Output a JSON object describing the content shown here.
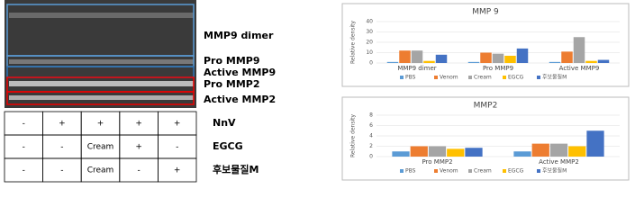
{
  "gel": {
    "band_labels": [
      "MMP9 dimer",
      "Pro MMP9",
      "Active MMP9",
      "Pro MMP2",
      "Active MMP2"
    ],
    "table": {
      "rows": [
        [
          "-",
          "+",
          "+",
          "+",
          "+",
          "NnV"
        ],
        [
          "-",
          "-",
          "Cream",
          "+",
          "-",
          "EGCG"
        ],
        [
          "-",
          "-",
          "Cream",
          "-",
          "+",
          "후보물질M"
        ]
      ]
    }
  },
  "chart_data": [
    {
      "type": "bar",
      "title": "MMP 9",
      "y_label": "Relative density",
      "categories": [
        "MMP9 dimer",
        "Pro MMP9",
        "Active MMP9"
      ],
      "series": [
        {
          "name": "PBS",
          "color": "#5b9bd5",
          "values": [
            1,
            1,
            1
          ]
        },
        {
          "name": "Venom",
          "color": "#ed7d31",
          "values": [
            12,
            10,
            11
          ]
        },
        {
          "name": "Cream",
          "color": "#a5a5a5",
          "values": [
            12,
            9,
            25
          ]
        },
        {
          "name": "EGCG",
          "color": "#ffc000",
          "values": [
            2,
            7,
            2
          ]
        },
        {
          "name": "후보물질M",
          "color": "#4472c4",
          "values": [
            8,
            14,
            3
          ]
        }
      ],
      "ylim": [
        0,
        40
      ],
      "yticks": [
        0,
        10,
        20,
        30,
        40
      ],
      "grid": true
    },
    {
      "type": "bar",
      "title": "MMP2",
      "y_label": "Relative density",
      "categories": [
        "Pro MMP2",
        "Active MMP2"
      ],
      "series": [
        {
          "name": "PBS",
          "color": "#5b9bd5",
          "values": [
            1,
            1
          ]
        },
        {
          "name": "Venom",
          "color": "#ed7d31",
          "values": [
            2,
            2.5
          ]
        },
        {
          "name": "Cream",
          "color": "#a5a5a5",
          "values": [
            2,
            2.5
          ]
        },
        {
          "name": "EGCG",
          "color": "#ffc000",
          "values": [
            1.5,
            2
          ]
        },
        {
          "name": "후보물질M",
          "color": "#4472c4",
          "values": [
            1.7,
            5
          ]
        }
      ],
      "ylim": [
        0,
        8
      ],
      "yticks": [
        0,
        2,
        4,
        6,
        8
      ],
      "grid": true
    }
  ]
}
